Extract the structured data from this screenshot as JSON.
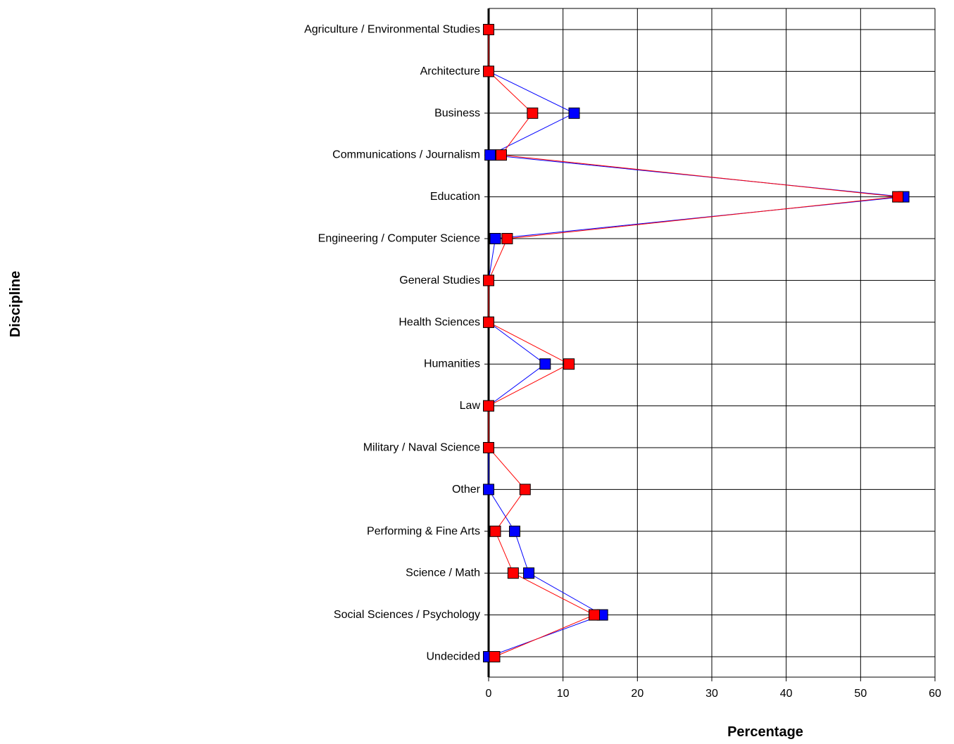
{
  "chart_data": {
    "type": "line",
    "orientation": "horizontal",
    "xlabel": "Percentage",
    "ylabel": "Discipline",
    "xlim": [
      0,
      60
    ],
    "xticks": [
      0,
      10,
      20,
      30,
      40,
      50,
      60
    ],
    "grid": true,
    "legend": "none",
    "categories": [
      "Agriculture / Environmental Studies",
      "Architecture",
      "Business",
      "Communications / Journalism",
      "Education",
      "Engineering / Computer Science",
      "General Studies",
      "Health Sciences",
      "Humanities",
      "Law",
      "Military / Naval Science",
      "Other",
      "Performing & Fine Arts",
      "Science / Math",
      "Social Sciences / Psychology",
      "Undecided"
    ],
    "series": [
      {
        "color": "#0000ff",
        "values": [
          0,
          0,
          11.5,
          0.2,
          55.8,
          0.9,
          0,
          0,
          7.6,
          0,
          0,
          0,
          3.5,
          5.4,
          15.3,
          0
        ]
      },
      {
        "color": "#ff0000",
        "values": [
          0,
          0,
          5.9,
          1.7,
          55.0,
          2.5,
          0,
          0,
          10.8,
          0,
          0,
          4.9,
          0.9,
          3.3,
          14.2,
          0.8
        ]
      }
    ]
  }
}
